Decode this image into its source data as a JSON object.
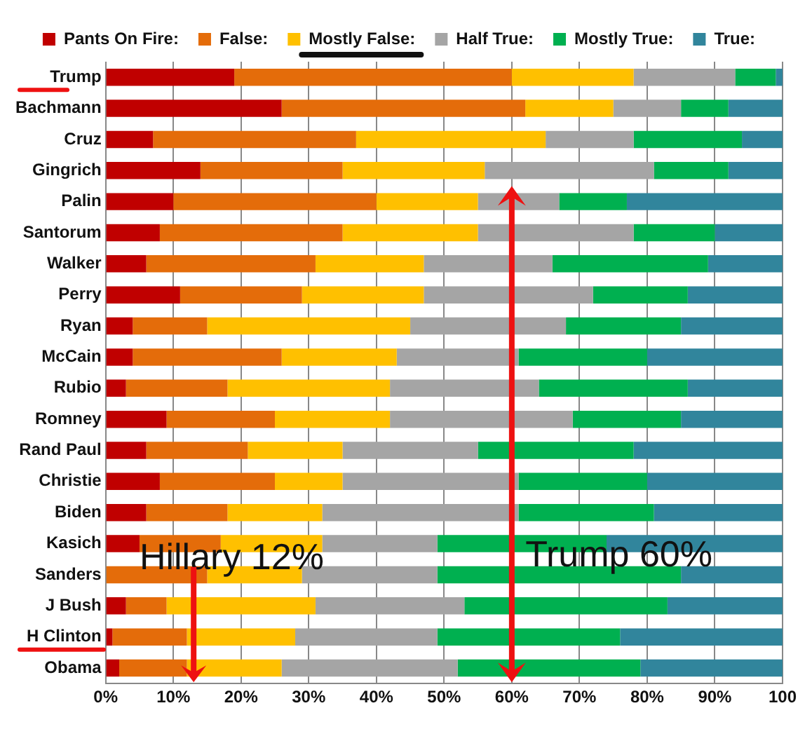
{
  "chart_data": {
    "type": "bar",
    "orientation": "horizontal",
    "stacked": true,
    "categories": [
      "Trump",
      "Bachmann",
      "Cruz",
      "Gingrich",
      "Palin",
      "Santorum",
      "Walker",
      "Perry",
      "Ryan",
      "McCain",
      "Rubio",
      "Romney",
      "Rand Paul",
      "Christie",
      "Biden",
      "Kasich",
      "Sanders",
      "J Bush",
      "H Clinton",
      "Obama"
    ],
    "series": [
      {
        "name": "Pants On Fire:",
        "color": "#c00000",
        "values": [
          19,
          26,
          7,
          14,
          10,
          8,
          6,
          11,
          4,
          4,
          3,
          9,
          6,
          8,
          6,
          5,
          0,
          3,
          1,
          2
        ]
      },
      {
        "name": "False:",
        "color": "#e46c0a",
        "values": [
          41,
          36,
          30,
          21,
          30,
          27,
          25,
          18,
          11,
          22,
          15,
          16,
          15,
          17,
          12,
          12,
          15,
          6,
          11,
          10
        ]
      },
      {
        "name": "Mostly False:",
        "color": "#ffc000",
        "values": [
          18,
          13,
          28,
          21,
          15,
          20,
          16,
          18,
          30,
          17,
          24,
          17,
          14,
          10,
          14,
          15,
          14,
          22,
          16,
          14
        ]
      },
      {
        "name": "Half True:",
        "color": "#a5a5a5",
        "values": [
          15,
          10,
          13,
          25,
          12,
          23,
          19,
          25,
          23,
          18,
          22,
          27,
          20,
          26,
          29,
          17,
          20,
          22,
          21,
          26
        ]
      },
      {
        "name": "Mostly True:",
        "color": "#00b050",
        "values": [
          6,
          7,
          16,
          11,
          10,
          12,
          23,
          14,
          17,
          19,
          22,
          16,
          23,
          19,
          20,
          25,
          36,
          30,
          27,
          27
        ]
      },
      {
        "name": "True:",
        "color": "#31859c",
        "values": [
          1,
          8,
          6,
          8,
          23,
          10,
          11,
          14,
          15,
          20,
          14,
          15,
          22,
          20,
          19,
          26,
          15,
          17,
          24,
          21
        ]
      }
    ],
    "xlim": [
      0,
      100
    ],
    "xticks": [
      {
        "value": 0,
        "label": "0%"
      },
      {
        "value": 10,
        "label": "10%"
      },
      {
        "value": 20,
        "label": "20%"
      },
      {
        "value": 30,
        "label": "30%"
      },
      {
        "value": 40,
        "label": "40%"
      },
      {
        "value": 50,
        "label": "50%"
      },
      {
        "value": 60,
        "label": "60%"
      },
      {
        "value": 70,
        "label": "70%"
      },
      {
        "value": 80,
        "label": "80%"
      },
      {
        "value": 90,
        "label": "90%"
      },
      {
        "value": 100,
        "label": "100"
      }
    ],
    "grid": "x",
    "legend": "top",
    "annotations": [
      "Hillary 12%",
      "Trump 60%"
    ]
  }
}
